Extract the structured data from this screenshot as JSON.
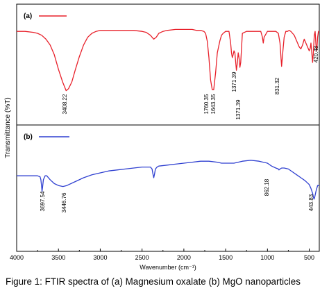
{
  "figure": {
    "caption": "Figure 1: FTIR spectra of (a) Magnesium oxalate (b) MgO nanoparticles"
  },
  "chart_data": {
    "type": "line",
    "xlabel": "Wavenumber (cm⁻¹)",
    "ylabel": "Transmittance (%T)",
    "xlim": [
      4000,
      380
    ],
    "x_reversed": true,
    "xticks": [
      4000,
      3500,
      3000,
      2500,
      2000,
      1500,
      1000,
      500
    ],
    "panels": [
      {
        "label": "(a)",
        "color": "#e8202a",
        "series": [
          {
            "x": [
              4000,
              3900,
              3800,
              3750,
              3700,
              3650,
              3600,
              3550,
              3500,
              3450,
              3408,
              3380,
              3340,
              3300,
              3250,
              3200,
              3150,
              3100,
              3050,
              3000,
              2950,
              2900,
              2800,
              2700,
              2600,
              2500,
              2450,
              2400,
              2360,
              2330,
              2300,
              2250,
              2200,
              2100,
              2000,
              1950,
              1900,
              1850,
              1800,
              1760,
              1740,
              1720,
              1700,
              1680,
              1660,
              1643,
              1620,
              1600,
              1570,
              1550,
              1530,
              1500,
              1480,
              1460,
              1440,
              1430,
              1420,
              1410,
              1400,
              1390,
              1380,
              1371,
              1360,
              1350,
              1340,
              1330,
              1320,
              1310,
              1300,
              1250,
              1200,
              1150,
              1100,
              1080,
              1060,
              1050,
              1040,
              1000,
              960,
              930,
              900,
              870,
              850,
              831,
              815,
              800,
              780,
              760,
              740,
              720,
              700,
              680,
              660,
              640,
              620,
              600,
              580,
              560,
              540,
              520,
              500,
              490,
              480,
              470,
              460,
              450,
              440,
              430,
              420,
              410,
              400,
              390,
              380
            ],
            "y": [
              82,
              82,
              81,
              80,
              78,
              74,
              68,
              58,
              43,
              30,
              21,
              23,
              30,
              42,
              56,
              68,
              76,
              80,
              82,
              83,
              83,
              83,
              83,
              83,
              83,
              82,
              81,
              78,
              74,
              76,
              80,
              82,
              83,
              84,
              84,
              84,
              84,
              83,
              83,
              82,
              80,
              72,
              55,
              32,
              22,
              22,
              40,
              60,
              72,
              78,
              80,
              82,
              82,
              82,
              70,
              60,
              55,
              58,
              62,
              60,
              50,
              42,
              50,
              60,
              55,
              45,
              50,
              65,
              80,
              82,
              82,
              82,
              82,
              82,
              76,
              70,
              76,
              82,
              82,
              82,
              82,
              80,
              70,
              46,
              62,
              76,
              82,
              82,
              83,
              82,
              80,
              78,
              74,
              70,
              66,
              64,
              68,
              74,
              70,
              66,
              62,
              64,
              70,
              60,
              50,
              62,
              78,
              82,
              68,
              62,
              76,
              82,
              82
            ]
          }
        ],
        "annotations": [
          "3408.22",
          "1760.35",
          "1643.35",
          "1371.39",
          "1371.39",
          "831.32",
          "420.48"
        ]
      },
      {
        "label": "(b)",
        "color": "#2e3fd0",
        "series": [
          {
            "x": [
              4000,
              3900,
              3800,
              3750,
              3720,
              3710,
              3700,
              3697,
              3690,
              3680,
              3660,
              3640,
              3600,
              3550,
              3500,
              3446,
              3400,
              3300,
              3200,
              3100,
              3000,
              2900,
              2800,
              2700,
              2600,
              2500,
              2450,
              2400,
              2380,
              2370,
              2360,
              2350,
              2340,
              2320,
              2300,
              2200,
              2100,
              2000,
              1900,
              1800,
              1700,
              1600,
              1550,
              1500,
              1450,
              1400,
              1350,
              1300,
              1200,
              1100,
              1000,
              950,
              900,
              870,
              862,
              850,
              830,
              800,
              750,
              700,
              650,
              600,
              550,
              500,
              480,
              460,
              450,
              443,
              435,
              420,
              400,
              390,
              380
            ],
            "y": [
              62,
              62,
              62,
              62,
              61,
              58,
              50,
              46,
              50,
              58,
              62,
              62,
              58,
              54,
              52,
              51,
              52,
              56,
              60,
              63,
              65,
              67,
              68,
              69,
              70,
              71,
              71,
              71,
              69,
              64,
              60,
              64,
              69,
              71,
              72,
              73,
              74,
              75,
              76,
              77,
              77,
              76,
              75,
              75,
              75,
              75,
              76,
              77,
              78,
              77,
              75,
              72,
              70,
              69,
              68,
              69,
              70,
              70,
              69,
              66,
              63,
              60,
              57,
              53,
              49,
              44,
              40,
              38,
              40,
              46,
              52,
              52,
              52
            ]
          }
        ],
        "annotations": [
          "3697.54",
          "3446.76",
          "862.18",
          "443.83"
        ]
      }
    ]
  }
}
